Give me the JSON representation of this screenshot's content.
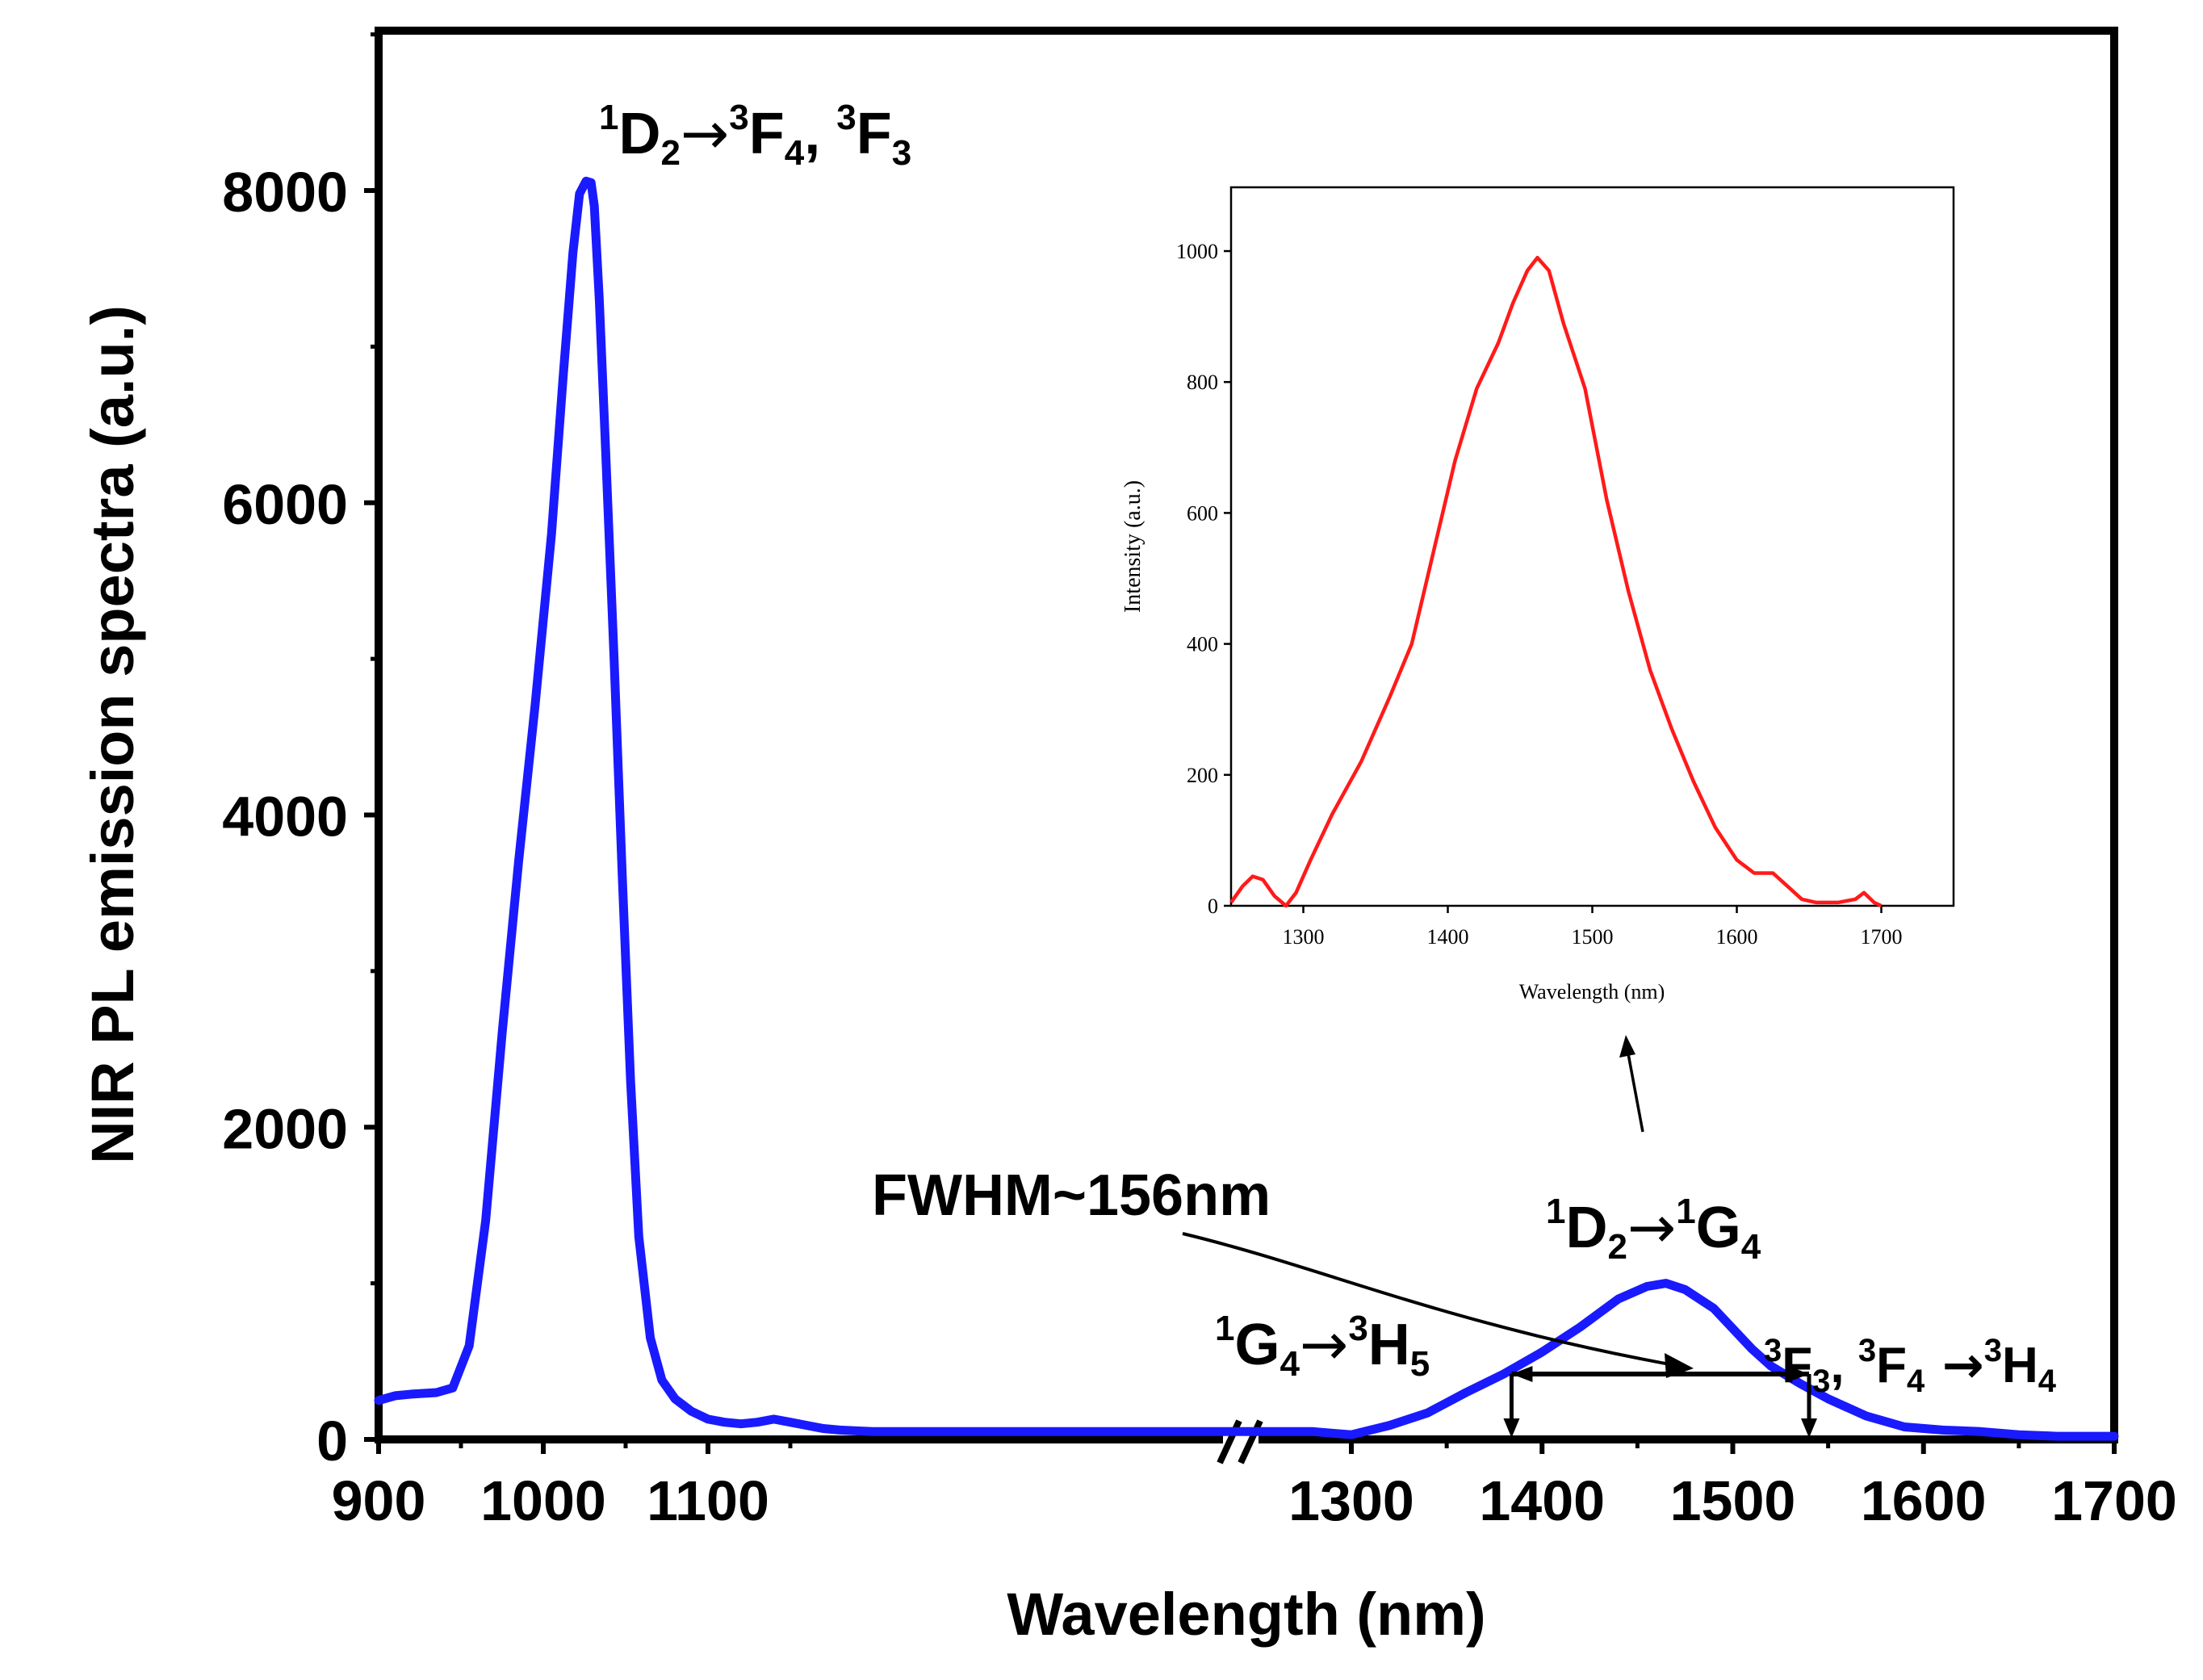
{
  "chart_data": [
    {
      "id": "main",
      "type": "line",
      "xlabel": "Wavelength (nm)",
      "ylabel": "NIR PL emission spectra (a.u.)",
      "x_axis_break": [
        1200,
        1280
      ],
      "xlim": [
        900,
        1700
      ],
      "ylim": [
        0,
        9000
      ],
      "x_ticks": [
        900,
        1000,
        1100,
        1300,
        1400,
        1500,
        1600,
        1700
      ],
      "y_ticks": [
        0,
        2000,
        4000,
        6000,
        8000
      ],
      "grid": false,
      "line_color": "#1a1aff",
      "series": [
        {
          "x": [
            900,
            910,
            920,
            935,
            945,
            955,
            965,
            975,
            985,
            995,
            1005,
            1012,
            1018,
            1022,
            1026,
            1029,
            1031,
            1034,
            1038,
            1043,
            1048,
            1053,
            1058,
            1065,
            1072,
            1080,
            1090,
            1100,
            1110,
            1120,
            1130,
            1140,
            1150,
            1160,
            1170,
            1180,
            1190,
            1200,
            1280,
            1290,
            1300,
            1320,
            1340,
            1360,
            1370,
            1380,
            1400,
            1420,
            1440,
            1455,
            1465,
            1475,
            1490,
            1510,
            1520,
            1535,
            1550,
            1570,
            1590,
            1610,
            1630,
            1650,
            1670,
            1690,
            1700
          ],
          "y": [
            250,
            280,
            290,
            300,
            330,
            600,
            1400,
            2600,
            3700,
            4700,
            5800,
            6800,
            7600,
            7980,
            8060,
            8050,
            7900,
            7300,
            6300,
            5000,
            3600,
            2300,
            1300,
            650,
            380,
            260,
            180,
            130,
            110,
            100,
            110,
            130,
            110,
            90,
            70,
            60,
            55,
            50,
            50,
            40,
            30,
            90,
            170,
            300,
            360,
            420,
            560,
            720,
            900,
            980,
            1000,
            960,
            840,
            580,
            470,
            360,
            260,
            150,
            80,
            60,
            50,
            30,
            20,
            20,
            20
          ]
        }
      ],
      "annotations": {
        "peak1": {
          "base": "D",
          "pre": "1",
          "sub1": "2",
          "arrow": "→",
          "pre2": "3",
          "base2": "F",
          "sub2": "4",
          "sep": ", ",
          "pre3": "3",
          "base3": "F",
          "sub3": "3"
        },
        "peak2": {
          "pre": "1",
          "base": "D",
          "sub1": "2",
          "arrow": "→",
          "pre2": "1",
          "base2": "G",
          "sub2": "4"
        },
        "peak3": {
          "pre": "1",
          "base": "G",
          "sub1": "4",
          "arrow": "→",
          "pre2": "3",
          "base2": "H",
          "sub2": "5"
        },
        "peak4": {
          "pre": "3",
          "base": "F",
          "sub1": "3",
          "sep": ", ",
          "pre2": "3",
          "base2": "F",
          "sub2": "4",
          "arrow": " →",
          "pre3": "3",
          "base3": "H",
          "sub3": "4"
        },
        "fwhm": "FWHM~156nm",
        "fwhm_range": [
          1384,
          1540
        ]
      }
    },
    {
      "id": "inset",
      "type": "line",
      "xlabel": "Wavelength (nm)",
      "ylabel": "Intensity (a.u.)",
      "xlim": [
        1250,
        1750
      ],
      "ylim": [
        0,
        1100
      ],
      "x_ticks": [
        1300,
        1400,
        1500,
        1600,
        1700
      ],
      "y_ticks": [
        0,
        200,
        400,
        600,
        800,
        1000
      ],
      "grid": false,
      "line_color": "#ff1a1a",
      "series": [
        {
          "x": [
            1250,
            1258,
            1265,
            1272,
            1280,
            1288,
            1295,
            1305,
            1320,
            1340,
            1360,
            1375,
            1390,
            1405,
            1420,
            1435,
            1445,
            1455,
            1462,
            1470,
            1480,
            1495,
            1510,
            1525,
            1540,
            1555,
            1570,
            1585,
            1600,
            1612,
            1625,
            1635,
            1645,
            1655,
            1670,
            1682,
            1688,
            1695,
            1700
          ],
          "y": [
            5,
            30,
            45,
            40,
            15,
            0,
            20,
            70,
            140,
            220,
            320,
            400,
            540,
            680,
            790,
            860,
            920,
            970,
            990,
            970,
            890,
            790,
            620,
            480,
            360,
            270,
            190,
            120,
            70,
            50,
            50,
            30,
            10,
            5,
            5,
            10,
            20,
            5,
            0
          ]
        }
      ]
    }
  ]
}
